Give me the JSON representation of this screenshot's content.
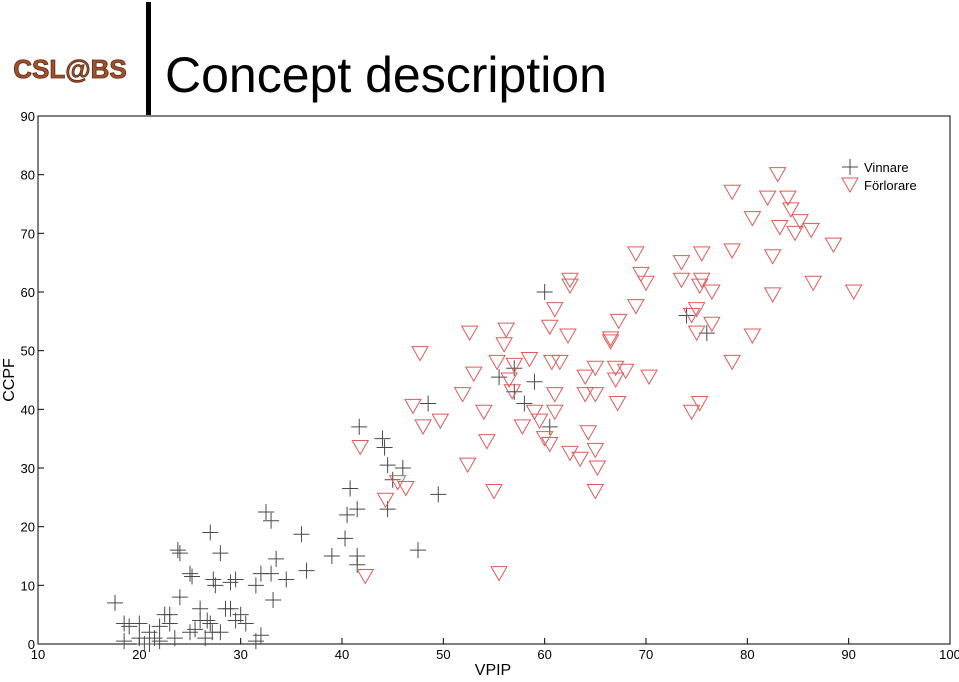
{
  "slide": {
    "logo": "CSL@BS",
    "title": "Concept description"
  },
  "chart_data": {
    "type": "scatter",
    "xlabel": "VPIP",
    "ylabel": "CCPF",
    "xlim": [
      10,
      100
    ],
    "xticks": [
      10,
      20,
      30,
      40,
      50,
      60,
      70,
      80,
      90,
      100
    ],
    "ylim": [
      0,
      90
    ],
    "yticks": [
      0,
      10,
      20,
      30,
      40,
      50,
      60,
      70,
      80,
      90
    ],
    "legend": "upper right",
    "series": [
      {
        "name": "Vinnare",
        "color": "#4a4a4a",
        "marker": "plus",
        "x": [
          17.6,
          23.8,
          24,
          19,
          20,
          21,
          22,
          20.5,
          23,
          24,
          22,
          25,
          26,
          27,
          26.5,
          25,
          25.2,
          27,
          27.3,
          27.5,
          28,
          28.5,
          29,
          29.5,
          28,
          29.5,
          30,
          31.5,
          32,
          32.5,
          33,
          33,
          33.2,
          33.5,
          34.5,
          36,
          36.5,
          39,
          40.3,
          40.5,
          40.8,
          41.5,
          41.5,
          41.5,
          41.7,
          44,
          44.2,
          44.5,
          44.5,
          45,
          46,
          47.5,
          48.5,
          49.5,
          55.5,
          57,
          57,
          58,
          59,
          60,
          60.5,
          76,
          74,
          23,
          26,
          27.2,
          31.5,
          18.5,
          20,
          21.5,
          30.5,
          29,
          25.5,
          26.7,
          22.5,
          21,
          23.5,
          18.5,
          32
        ],
        "values": [
          7,
          16,
          15.5,
          3,
          1,
          2,
          0.5,
          0,
          5,
          8,
          3,
          2,
          4,
          3.5,
          1,
          12,
          11.5,
          19,
          11,
          10,
          15.5,
          6,
          10.5,
          11,
          2,
          4,
          5,
          10,
          12,
          22.5,
          21,
          12,
          7.5,
          14.5,
          11,
          18.7,
          12.5,
          15,
          18,
          22,
          26.5,
          23,
          15,
          13.5,
          37,
          35,
          33.5,
          30.5,
          23,
          28,
          30,
          16,
          41,
          25.5,
          45.5,
          47,
          43,
          41,
          44.7,
          60,
          37,
          53,
          56,
          3.5,
          6,
          2,
          0.5,
          0.5,
          3.5,
          1,
          3.5,
          6,
          2.5,
          4,
          5,
          0,
          1,
          3.5,
          1.5
        ]
      },
      {
        "name": "Förlorare",
        "color": "#e05a5a",
        "marker": "triangle-down",
        "x": [
          41.8,
          42.3,
          44.3,
          45.5,
          46.3,
          47,
          47.7,
          48,
          49.7,
          51.9,
          52.4,
          52.6,
          53,
          54,
          54.3,
          55,
          55.3,
          55.5,
          56,
          56.2,
          56.5,
          57,
          56.8,
          57.8,
          58.5,
          59,
          59.5,
          60,
          60.5,
          60.7,
          60.5,
          61,
          61,
          61.5,
          61,
          62.3,
          62.5,
          62.5,
          62.5,
          63.5,
          64,
          64,
          64.3,
          65,
          65,
          65,
          65.2,
          65,
          66.5,
          66.5,
          67,
          67,
          67.2,
          67.3,
          68,
          69,
          69,
          69.5,
          70,
          70.3,
          73.5,
          73.5,
          74.5,
          74.5,
          75,
          75,
          75.3,
          75.3,
          75.5,
          75.5,
          76.5,
          76.5,
          78.5,
          78.5,
          78.5,
          80.5,
          80.5,
          82,
          82.5,
          82.5,
          83,
          83.2,
          84,
          84.3,
          84.7,
          85.2,
          86.3,
          86.5,
          88.5,
          90.5
        ],
        "values": [
          33.5,
          11.5,
          24.5,
          27.5,
          26.5,
          40.5,
          49.5,
          37,
          38,
          42.5,
          30.5,
          53,
          46,
          39.5,
          34.5,
          26,
          48,
          12,
          51,
          53.5,
          45,
          47.5,
          43,
          37,
          48.5,
          39.5,
          38,
          35,
          54,
          48,
          34,
          42.5,
          39.5,
          48,
          57,
          52.5,
          62,
          61,
          32.5,
          31.5,
          45.5,
          42.5,
          36,
          47,
          42.5,
          33,
          30,
          26,
          51.5,
          52,
          47,
          45,
          41,
          55,
          46.5,
          57.5,
          66.5,
          63,
          61.5,
          45.5,
          65,
          62,
          56,
          39.5,
          57,
          53,
          61,
          41,
          62,
          66.5,
          60,
          54.5,
          48,
          77,
          67,
          72.5,
          52.5,
          76,
          66,
          59.5,
          80,
          71,
          76,
          74,
          70,
          72,
          70.5,
          61.5,
          68,
          60
        ]
      }
    ]
  }
}
